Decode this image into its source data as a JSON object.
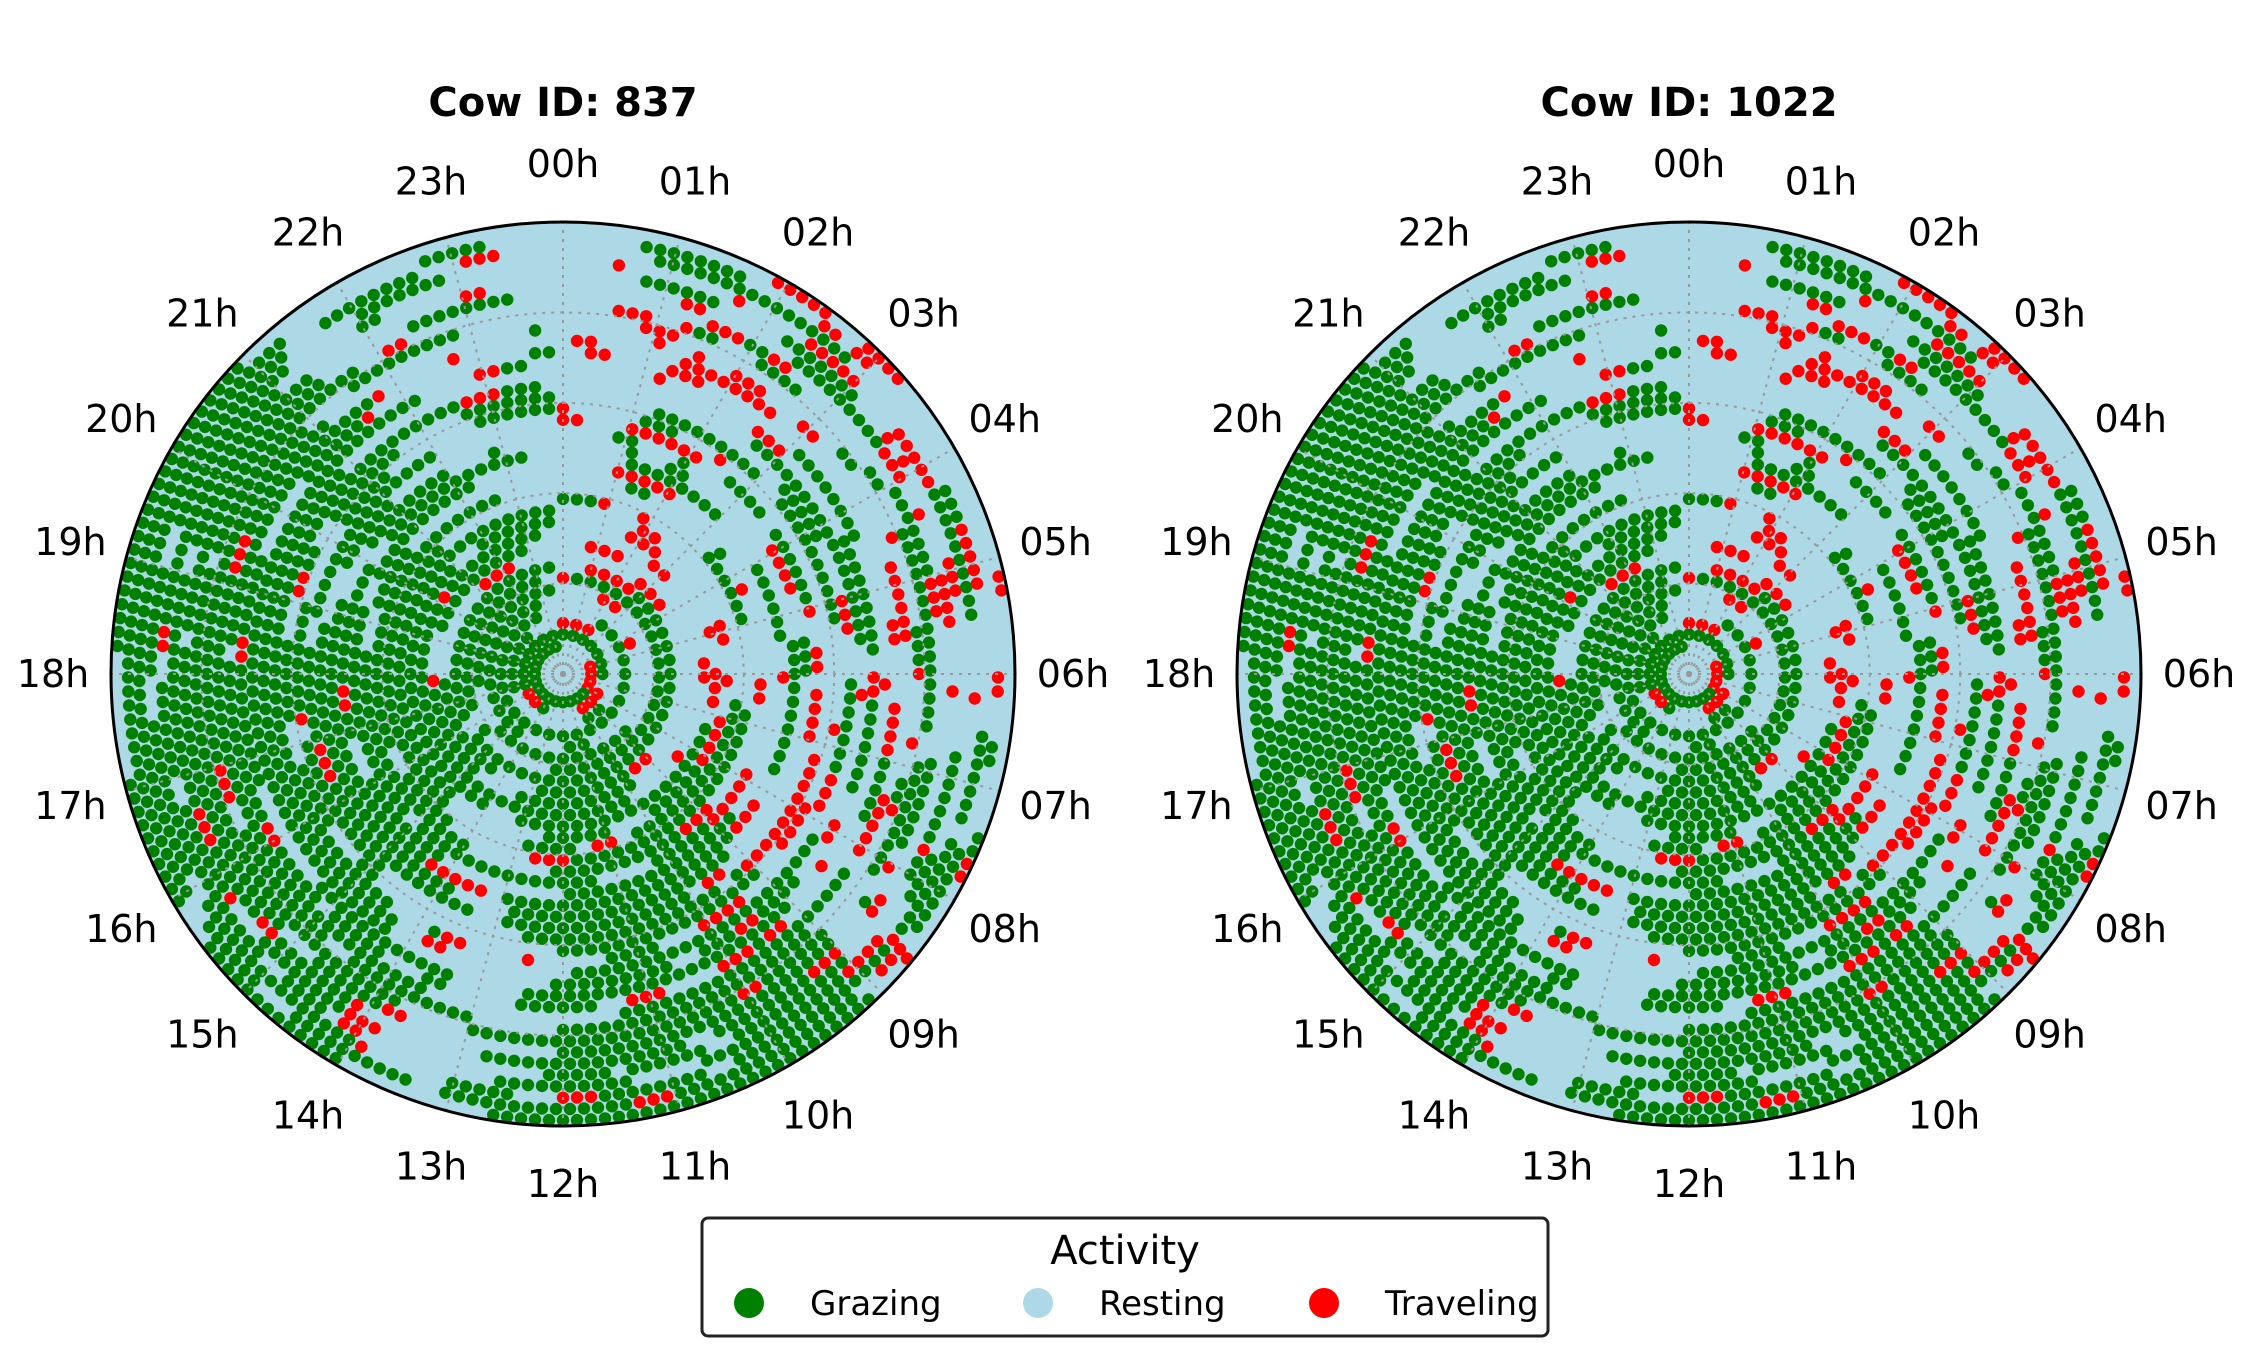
{
  "chart_data": [
    {
      "type": "polar-scatter",
      "title": "Cow ID: 837",
      "hour_labels": [
        "00h",
        "01h",
        "02h",
        "03h",
        "04h",
        "05h",
        "06h",
        "07h",
        "08h",
        "09h",
        "10h",
        "11h",
        "12h",
        "13h",
        "14h",
        "15h",
        "16h",
        "17h",
        "18h",
        "19h",
        "20h",
        "21h",
        "22h",
        "23h"
      ],
      "theta_direction": "clockwise",
      "theta_zero": "top",
      "rings": 40,
      "grid": true,
      "background_category": "Resting",
      "activity_by_hour": {
        "dominant_grazing_hours": [
          9,
          10,
          11,
          14,
          15,
          16,
          17,
          18,
          19,
          20
        ],
        "frequent_traveling_hours": [
          1,
          2,
          4,
          5,
          6,
          7,
          8,
          9
        ],
        "mostly_resting_hours": [
          21,
          22,
          23,
          0,
          3,
          12,
          13
        ]
      }
    },
    {
      "type": "polar-scatter",
      "title": "Cow ID: 1022",
      "hour_labels": [
        "00h",
        "01h",
        "02h",
        "03h",
        "04h",
        "05h",
        "06h",
        "07h",
        "08h",
        "09h",
        "10h",
        "11h",
        "12h",
        "13h",
        "14h",
        "15h",
        "16h",
        "17h",
        "18h",
        "19h",
        "20h",
        "21h",
        "22h",
        "23h"
      ],
      "theta_direction": "clockwise",
      "theta_zero": "top",
      "rings": 40,
      "grid": true,
      "background_category": "Resting",
      "activity_by_hour": {
        "dominant_grazing_hours": [
          9,
          10,
          11,
          14,
          15,
          16,
          17,
          18,
          19,
          20
        ],
        "frequent_traveling_hours": [
          1,
          2,
          4,
          5,
          6,
          7,
          8,
          9
        ],
        "mostly_resting_hours": [
          21,
          22,
          23,
          0,
          3,
          12,
          13
        ]
      }
    }
  ],
  "legend": {
    "title": "Activity",
    "placement": "bottom-center",
    "items": [
      {
        "label": "Grazing",
        "color": "#008000"
      },
      {
        "label": "Resting",
        "color": "#add8e6"
      },
      {
        "label": "Traveling",
        "color": "#ff0000"
      }
    ]
  }
}
